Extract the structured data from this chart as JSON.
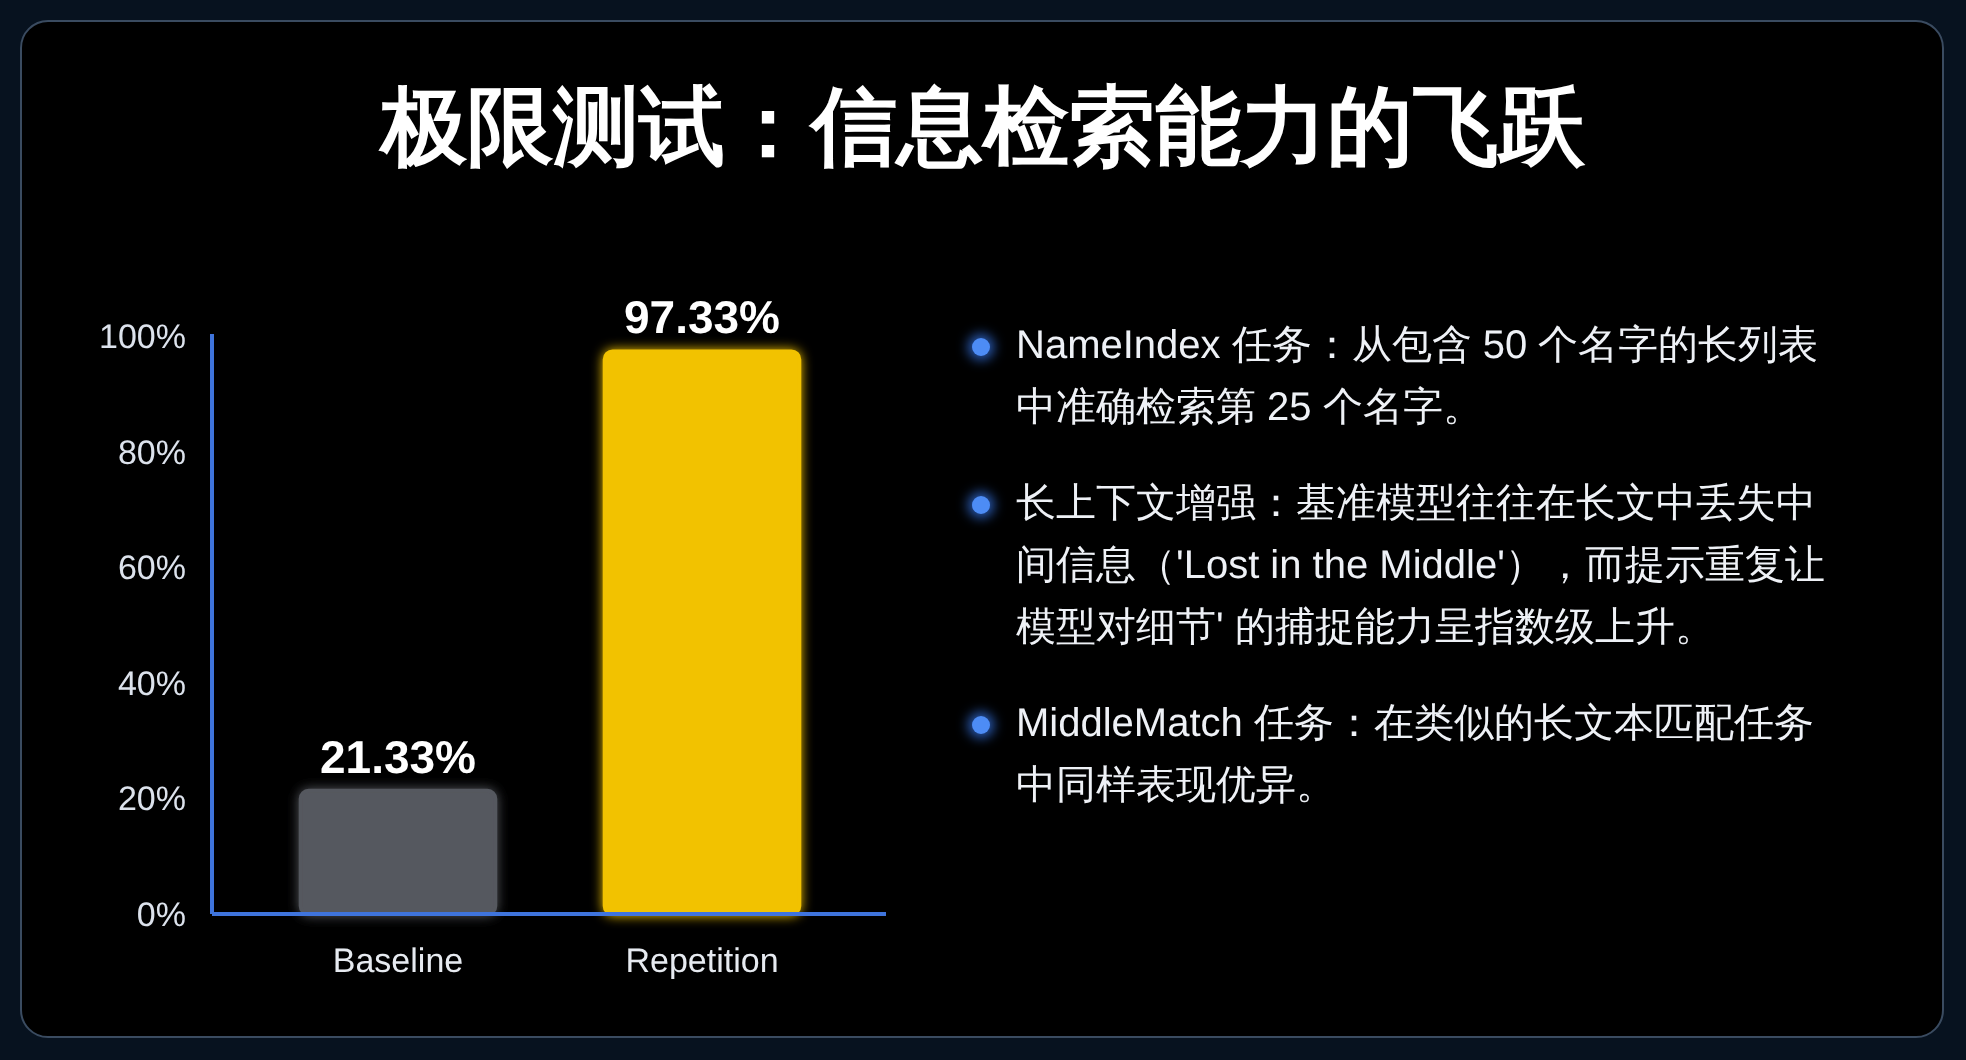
{
  "chart_data": {
    "type": "bar",
    "title": "极限测试：信息检索能力的飞跃",
    "categories": [
      "Baseline",
      "Repetition"
    ],
    "values": [
      21.33,
      97.33
    ],
    "colors": [
      "#55585e",
      "#f2c200"
    ],
    "value_labels": [
      "21.33%",
      "97.33%"
    ],
    "ylim": [
      0,
      100
    ],
    "yticks": [
      {
        "value": 0,
        "label": "0%"
      },
      {
        "value": 20,
        "label": "20%"
      },
      {
        "value": 40,
        "label": "40%"
      },
      {
        "value": 60,
        "label": "60%"
      },
      {
        "value": 80,
        "label": "80%"
      },
      {
        "value": 100,
        "label": "100%"
      }
    ],
    "annotations": [
      "NameIndex 任务：从包含 50 个名字的长列表中准确检索第 25 个名字。",
      "长上下文增强：基准模型往往在长文中丢失中间信息（'Lost in the Middle'），而提示重复让模型对细节' 的捕捉能力呈指数级上升。",
      "MiddleMatch 任务：在类似的长文本匹配任务中同样表现优异。"
    ]
  }
}
